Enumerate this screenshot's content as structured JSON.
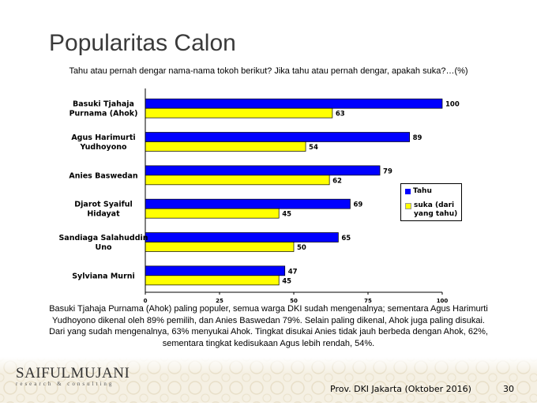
{
  "slide": {
    "title": "Popularitas Calon",
    "question": "Tahu atau pernah dengar nama-nama tokoh berikut? Jika tahu atau pernah dengar, apakah suka?…(%)",
    "summary": "Basuki Tjahaja Purnama (Ahok) paling populer, semua warga DKI sudah mengenalnya; sementara Agus Harimurti Yudhoyono dikenal oleh 89% pemilih, dan Anies Baswedan 79%. Selain paling dikenal, Ahok juga paling disukai. Dari yang sudah mengenalnya, 63% menyukai Ahok. Tingkat disukai Anies tidak jauh berbeda dengan Ahok, 62%, sementara tingkat kedisukaan Agus lebih rendah, 54%.",
    "source": "Prov. DKI Jakarta (Oktober 2016)",
    "page_number": "30"
  },
  "logo": {
    "brand": "SAIFULMUJANI",
    "tagline": "research & consulting"
  },
  "chart_data": {
    "type": "bar",
    "orientation": "horizontal",
    "categories": [
      [
        "Basuki Tjahaja",
        "Purnama (Ahok)"
      ],
      [
        "Agus Harimurti",
        "Yudhoyono"
      ],
      [
        "Anies Baswedan"
      ],
      [
        "Djarot Syaiful",
        "Hidayat"
      ],
      [
        "Sandiaga Salahuddin",
        "Uno"
      ],
      [
        "Sylviana Murni"
      ]
    ],
    "series": [
      {
        "name": "Tahu",
        "color": "#0000ff",
        "values": [
          100,
          89,
          79,
          69,
          65,
          47
        ]
      },
      {
        "name": "suka (dari yang tahu)",
        "color": "#ffff00",
        "values": [
          63,
          54,
          62,
          45,
          50,
          45
        ]
      }
    ],
    "xlim": [
      0,
      100
    ],
    "xticks": [
      0,
      25,
      50,
      75,
      100
    ],
    "grid": false,
    "legend_position": "right"
  }
}
